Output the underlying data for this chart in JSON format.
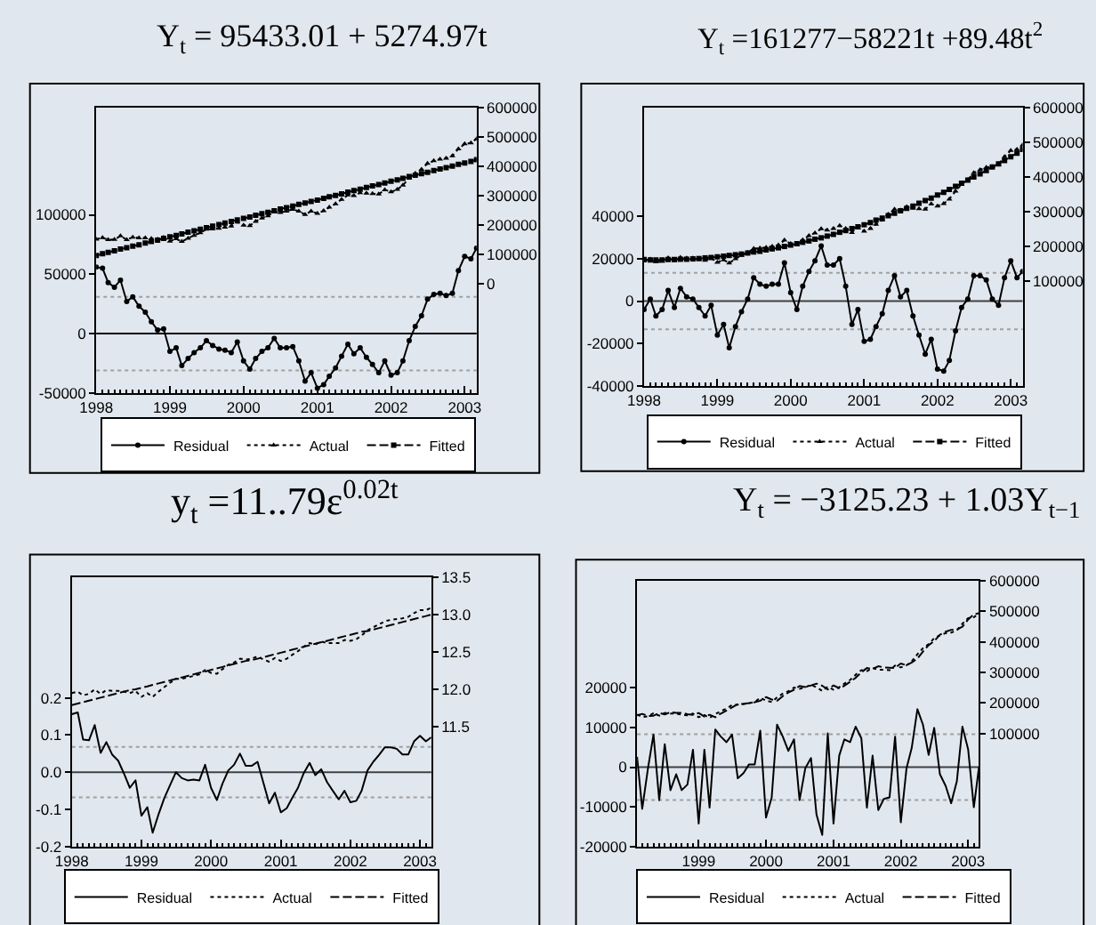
{
  "chart_data": [
    {
      "type": "line",
      "title": "Y$_{t}$ = 95433.01 + 5274.97t",
      "x": [
        "1998-01",
        "1998-02",
        "1998-03",
        "1998-04",
        "1998-05",
        "1998-06",
        "1998-07",
        "1998-08",
        "1998-09",
        "1998-10",
        "1998-11",
        "1998-12",
        "1999-01",
        "1999-02",
        "1999-03",
        "1999-04",
        "1999-05",
        "1999-06",
        "1999-07",
        "1999-08",
        "1999-09",
        "1999-10",
        "1999-11",
        "1999-12",
        "2000-01",
        "2000-02",
        "2000-03",
        "2000-04",
        "2000-05",
        "2000-06",
        "2000-07",
        "2000-08",
        "2000-09",
        "2000-10",
        "2000-11",
        "2000-12",
        "2001-01",
        "2001-02",
        "2001-03",
        "2001-04",
        "2001-05",
        "2001-06",
        "2001-07",
        "2001-08",
        "2001-09",
        "2001-10",
        "2001-11",
        "2001-12",
        "2002-01",
        "2002-02",
        "2002-03",
        "2002-04",
        "2002-05",
        "2002-06",
        "2002-07",
        "2002-08",
        "2002-09",
        "2002-10",
        "2002-11",
        "2002-12",
        "2003-01",
        "2003-02",
        "2003-03"
      ],
      "xlim": [
        "1998-01",
        "2003-03"
      ],
      "xticks": [
        "1998",
        "1999",
        "2000",
        "2001",
        "2002",
        "2003"
      ],
      "ylim": [
        -50000,
        190000
      ],
      "yticks": [
        -50000,
        0,
        50000,
        100000
      ],
      "y2lim": [
        -375000,
        600000
      ],
      "y2ticks": [
        0,
        100000,
        200000,
        300000,
        400000,
        500000,
        600000
      ],
      "series": [
        {
          "name": "Residual",
          "color": "#000000",
          "marker": "circle",
          "line_style": "solid",
          "values": [
            56000,
            55000,
            43000,
            39000,
            45000,
            27000,
            31000,
            23000,
            18000,
            10000,
            3000,
            4000,
            -15000,
            -12000,
            -27000,
            -21000,
            -16000,
            -12000,
            -6000,
            -10000,
            -13000,
            -14000,
            -16000,
            -7000,
            -23000,
            -30000,
            -21000,
            -15000,
            -12000,
            -4000,
            -12000,
            -12000,
            -11000,
            -23000,
            -40000,
            -33000,
            -46000,
            -43000,
            -36000,
            -29000,
            -19000,
            -9000,
            -17000,
            -12000,
            -20000,
            -26000,
            -33000,
            -23000,
            -35000,
            -33000,
            -23000,
            -6000,
            6000,
            15000,
            29000,
            33000,
            34000,
            32000,
            34000,
            53000,
            65000,
            63000,
            72000
          ]
        },
        {
          "name": "Actual",
          "color": "#000000",
          "marker": "triangle",
          "line_style": "dotted",
          "axis": "y2",
          "values": [
            151000,
            156000,
            149000,
            150000,
            162000,
            149000,
            158000,
            155000,
            155000,
            153000,
            151000,
            157000,
            144000,
            152000,
            143000,
            154000,
            164000,
            173000,
            185000,
            186000,
            188000,
            192000,
            196000,
            209000,
            199000,
            197000,
            212000,
            223000,
            231000,
            244000,
            242000,
            247000,
            253000,
            247000,
            235000,
            247000,
            239000,
            248000,
            260000,
            272000,
            287000,
            302000,
            300000,
            310000,
            308000,
            307000,
            305000,
            320000,
            313000,
            321000,
            336000,
            359000,
            376000,
            390000,
            410000,
            419000,
            425000,
            428000,
            436000,
            460000,
            477000,
            480000,
            494000
          ]
        },
        {
          "name": "Fitted",
          "color": "#000000",
          "marker": "square",
          "line_style": "dashed",
          "axis": "y2",
          "values": [
            95000,
            101000,
            106000,
            111000,
            117000,
            122000,
            127000,
            132000,
            138000,
            143000,
            148000,
            154000,
            159000,
            164000,
            169000,
            175000,
            180000,
            185000,
            190000,
            196000,
            201000,
            206000,
            212000,
            217000,
            222000,
            227000,
            233000,
            238000,
            243000,
            248000,
            254000,
            259000,
            264000,
            270000,
            275000,
            280000,
            285000,
            291000,
            296000,
            301000,
            306000,
            312000,
            317000,
            322000,
            328000,
            333000,
            338000,
            343000,
            349000,
            354000,
            359000,
            365000,
            370000,
            375000,
            380000,
            386000,
            391000,
            396000,
            401000,
            407000,
            412000,
            417000,
            423000
          ]
        }
      ],
      "ref_lines": [
        {
          "axis": "y",
          "value": 0,
          "color": "#000000",
          "line_style": "solid"
        },
        {
          "axis": "y",
          "value": 31000,
          "color": "#a0a0a0",
          "line_style": "dotted"
        },
        {
          "axis": "y",
          "value": -31000,
          "color": "#a0a0a0",
          "line_style": "dotted"
        }
      ],
      "legend": "bottom"
    },
    {
      "type": "line",
      "title": "Y$_{t}$ =161277−58221t +89.48t$^{2}$",
      "x": [
        "1998-01",
        "1998-02",
        "1998-03",
        "1998-04",
        "1998-05",
        "1998-06",
        "1998-07",
        "1998-08",
        "1998-09",
        "1998-10",
        "1998-11",
        "1998-12",
        "1999-01",
        "1999-02",
        "1999-03",
        "1999-04",
        "1999-05",
        "1999-06",
        "1999-07",
        "1999-08",
        "1999-09",
        "1999-10",
        "1999-11",
        "1999-12",
        "2000-01",
        "2000-02",
        "2000-03",
        "2000-04",
        "2000-05",
        "2000-06",
        "2000-07",
        "2000-08",
        "2000-09",
        "2000-10",
        "2000-11",
        "2000-12",
        "2001-01",
        "2001-02",
        "2001-03",
        "2001-04",
        "2001-05",
        "2001-06",
        "2001-07",
        "2001-08",
        "2001-09",
        "2001-10",
        "2001-11",
        "2001-12",
        "2002-01",
        "2002-02",
        "2002-03",
        "2002-04",
        "2002-05",
        "2002-06",
        "2002-07",
        "2002-08",
        "2002-09",
        "2002-10",
        "2002-11",
        "2002-12",
        "2003-01",
        "2003-02",
        "2003-03"
      ],
      "xlim": [
        "1998-01",
        "2003-03"
      ],
      "xticks": [
        "1998",
        "1999",
        "2000",
        "2001",
        "2002",
        "2003"
      ],
      "ylim": [
        -40000,
        91000
      ],
      "yticks": [
        -40000,
        -20000,
        0,
        20000,
        40000
      ],
      "y2lim": [
        -205000,
        600000
      ],
      "y2ticks": [
        100000,
        200000,
        300000,
        400000,
        500000,
        600000
      ],
      "series": [
        {
          "name": "Residual",
          "color": "#000000",
          "marker": "circle",
          "line_style": "solid",
          "values": [
            -4000,
            1000,
            -7000,
            -4000,
            5000,
            -3000,
            6000,
            2000,
            1000,
            -3000,
            -7000,
            -2000,
            -16000,
            -11000,
            -22000,
            -12000,
            -5000,
            1000,
            11000,
            8000,
            7000,
            8000,
            8000,
            18000,
            4000,
            -4000,
            7000,
            14000,
            19000,
            26000,
            17000,
            17000,
            20000,
            7000,
            -11000,
            -4000,
            -19000,
            -18000,
            -12000,
            -6000,
            5000,
            12000,
            2000,
            5000,
            -7000,
            -16000,
            -25000,
            -18000,
            -32000,
            -33000,
            -28000,
            -14000,
            -3000,
            1000,
            12000,
            12000,
            10000,
            1000,
            -2000,
            11000,
            19000,
            11000,
            14000
          ]
        },
        {
          "name": "Actual",
          "color": "#000000",
          "marker": "triangle",
          "line_style": "dotted",
          "axis": "y2",
          "values": [
            157000,
            162000,
            154000,
            156000,
            166000,
            158000,
            167000,
            165000,
            165000,
            161000,
            159000,
            165000,
            153000,
            160000,
            151000,
            163000,
            173000,
            181000,
            193000,
            194000,
            196000,
            199000,
            203000,
            217000,
            207000,
            203000,
            218000,
            230000,
            238000,
            250000,
            246000,
            251000,
            259000,
            251000,
            239000,
            253000,
            243000,
            251000,
            263000,
            275000,
            292000,
            307000,
            304000,
            314000,
            309000,
            308000,
            307000,
            322000,
            316000,
            323000,
            336000,
            359000,
            379000,
            392000,
            412000,
            421000,
            428000,
            430000,
            437000,
            459000,
            477000,
            480000,
            493000
          ]
        },
        {
          "name": "Fitted",
          "color": "#000000",
          "marker": "square",
          "line_style": "dashed",
          "axis": "y2",
          "values": [
            161000,
            160000,
            160000,
            160000,
            161000,
            161000,
            162000,
            162000,
            163000,
            164000,
            166000,
            167000,
            169000,
            171000,
            173000,
            175000,
            177000,
            180000,
            183000,
            185000,
            189000,
            192000,
            195000,
            199000,
            203000,
            207000,
            211000,
            215000,
            220000,
            224000,
            229000,
            234000,
            240000,
            245000,
            251000,
            256000,
            262000,
            268000,
            275000,
            281000,
            288000,
            295000,
            302000,
            309000,
            316000,
            324000,
            332000,
            339000,
            348000,
            356000,
            364000,
            373000,
            382000,
            391000,
            400000,
            409000,
            419000,
            429000,
            438000,
            448000,
            459000,
            469000,
            480000
          ]
        }
      ],
      "ref_lines": [
        {
          "axis": "y",
          "value": 0,
          "color": "#404040",
          "line_style": "solid"
        },
        {
          "axis": "y",
          "value": 13300,
          "color": "#a0a0a0",
          "line_style": "dotted"
        },
        {
          "axis": "y",
          "value": -13300,
          "color": "#a0a0a0",
          "line_style": "dotted"
        }
      ],
      "legend": "bottom"
    },
    {
      "type": "line",
      "title": "y$_{t}$ =11..79ε$^{0.02t}$",
      "x": [
        "1998-01",
        "1998-02",
        "1998-03",
        "1998-04",
        "1998-05",
        "1998-06",
        "1998-07",
        "1998-08",
        "1998-09",
        "1998-10",
        "1998-11",
        "1998-12",
        "1999-01",
        "1999-02",
        "1999-03",
        "1999-04",
        "1999-05",
        "1999-06",
        "1999-07",
        "1999-08",
        "1999-09",
        "1999-10",
        "1999-11",
        "1999-12",
        "2000-01",
        "2000-02",
        "2000-03",
        "2000-04",
        "2000-05",
        "2000-06",
        "2000-07",
        "2000-08",
        "2000-09",
        "2000-10",
        "2000-11",
        "2000-12",
        "2001-01",
        "2001-02",
        "2001-03",
        "2001-04",
        "2001-05",
        "2001-06",
        "2001-07",
        "2001-08",
        "2001-09",
        "2001-10",
        "2001-11",
        "2001-12",
        "2002-01",
        "2002-02",
        "2002-03",
        "2002-04",
        "2002-05",
        "2002-06",
        "2002-07",
        "2002-08",
        "2002-09",
        "2002-10",
        "2002-11",
        "2002-12",
        "2003-01",
        "2003-02",
        "2003-03"
      ],
      "xlim": [
        "1998-01",
        "2003-03"
      ],
      "xticks": [
        "1998",
        "1999",
        "2000",
        "2001",
        "2002",
        "2003"
      ],
      "ylim": [
        -0.2,
        0.525
      ],
      "yticks": [
        -0.2,
        -0.1,
        {
          "value": 0,
          "label": "0.0"
        },
        0.1,
        0.2
      ],
      "y2lim": [
        9.9,
        13.5
      ],
      "y2ticks": [
        11.5,
        {
          "value": 12,
          "label": "12.0"
        },
        12.5,
        {
          "value": 13,
          "label": "13.0"
        },
        13.5
      ],
      "series": [
        {
          "name": "Residual",
          "color": "#000000",
          "line_style": "solid",
          "values": [
            0.156,
            0.161,
            0.088,
            0.086,
            0.127,
            0.052,
            0.081,
            0.047,
            0.031,
            -0.003,
            -0.042,
            -0.022,
            -0.117,
            -0.094,
            -0.163,
            -0.113,
            -0.07,
            -0.034,
            0.0,
            -0.016,
            -0.022,
            -0.02,
            -0.022,
            0.02,
            -0.042,
            -0.075,
            -0.031,
            0.005,
            0.02,
            0.05,
            0.017,
            0.017,
            0.028,
            -0.027,
            -0.084,
            -0.055,
            -0.108,
            -0.097,
            -0.07,
            -0.042,
            -0.003,
            0.025,
            -0.008,
            0.008,
            -0.027,
            -0.05,
            -0.073,
            -0.05,
            -0.081,
            -0.077,
            -0.05,
            0.005,
            0.028,
            0.047,
            0.067,
            0.067,
            0.063,
            0.048,
            0.048,
            0.083,
            0.098,
            0.083,
            0.094
          ]
        },
        {
          "name": "Actual",
          "color": "#000000",
          "line_style": "dotted",
          "axis": "y2",
          "values": [
            11.95,
            11.97,
            11.92,
            11.94,
            12.0,
            11.94,
            11.99,
            11.98,
            11.98,
            11.97,
            11.95,
            11.98,
            11.9,
            11.95,
            11.9,
            11.97,
            12.03,
            12.09,
            12.14,
            12.14,
            12.16,
            12.18,
            12.2,
            12.26,
            12.22,
            12.21,
            12.27,
            12.33,
            12.36,
            12.41,
            12.4,
            12.41,
            12.44,
            12.4,
            12.37,
            12.42,
            12.38,
            12.41,
            12.46,
            12.51,
            12.57,
            12.62,
            12.6,
            12.64,
            12.62,
            12.62,
            12.62,
            12.66,
            12.65,
            12.67,
            12.72,
            12.79,
            12.83,
            12.87,
            12.91,
            12.93,
            12.94,
            12.95,
            12.97,
            13.02,
            13.06,
            13.06,
            13.09
          ]
        },
        {
          "name": "Fitted",
          "color": "#000000",
          "line_style": "dashed",
          "axis": "y2",
          "values": [
            11.79,
            11.81,
            11.83,
            11.85,
            11.87,
            11.89,
            11.91,
            11.93,
            11.95,
            11.97,
            11.99,
            12.0,
            12.02,
            12.04,
            12.06,
            12.08,
            12.1,
            12.12,
            12.14,
            12.16,
            12.18,
            12.2,
            12.22,
            12.24,
            12.26,
            12.28,
            12.3,
            12.32,
            12.34,
            12.36,
            12.38,
            12.39,
            12.41,
            12.43,
            12.45,
            12.47,
            12.49,
            12.51,
            12.53,
            12.55,
            12.57,
            12.59,
            12.61,
            12.63,
            12.65,
            12.67,
            12.69,
            12.71,
            12.73,
            12.75,
            12.77,
            12.78,
            12.8,
            12.82,
            12.84,
            12.86,
            12.88,
            12.9,
            12.92,
            12.94,
            12.96,
            12.98,
            13.0
          ]
        }
      ],
      "ref_lines": [
        {
          "axis": "y",
          "value": 0,
          "color": "#404040",
          "line_style": "solid"
        },
        {
          "axis": "y",
          "value": 0.068,
          "color": "#a0a0a0",
          "line_style": "dotted"
        },
        {
          "axis": "y",
          "value": -0.068,
          "color": "#a0a0a0",
          "line_style": "dotted"
        }
      ],
      "legend": "bottom"
    },
    {
      "type": "line",
      "title": "Y$_{t}$ = −3125.23 + 1.03Y$_{t−1}$",
      "x": [
        "1998-02",
        "1998-03",
        "1998-04",
        "1998-05",
        "1998-06",
        "1998-07",
        "1998-08",
        "1998-09",
        "1998-10",
        "1998-11",
        "1998-12",
        "1999-01",
        "1999-02",
        "1999-03",
        "1999-04",
        "1999-05",
        "1999-06",
        "1999-07",
        "1999-08",
        "1999-09",
        "1999-10",
        "1999-11",
        "1999-12",
        "2000-01",
        "2000-02",
        "2000-03",
        "2000-04",
        "2000-05",
        "2000-06",
        "2000-07",
        "2000-08",
        "2000-09",
        "2000-10",
        "2000-11",
        "2000-12",
        "2001-01",
        "2001-02",
        "2001-03",
        "2001-04",
        "2001-05",
        "2001-06",
        "2001-07",
        "2001-08",
        "2001-09",
        "2001-10",
        "2001-11",
        "2001-12",
        "2002-01",
        "2002-02",
        "2002-03",
        "2002-04",
        "2002-05",
        "2002-06",
        "2002-07",
        "2002-08",
        "2002-09",
        "2002-10",
        "2002-11",
        "2002-12",
        "2003-01",
        "2003-02",
        "2003-03"
      ],
      "xlim": [
        "1998-02",
        "2003-03"
      ],
      "xticks": [
        "1999",
        "2000",
        "2001",
        "2002",
        "2003"
      ],
      "ylim": [
        -20000,
        47000
      ],
      "yticks": [
        -20000,
        -10000,
        0,
        10000,
        20000
      ],
      "y2lim": [
        -270000,
        600000
      ],
      "y2ticks": [
        100000,
        200000,
        300000,
        400000,
        500000,
        600000
      ],
      "series": [
        {
          "name": "Residual",
          "color": "#000000",
          "line_style": "solid",
          "values": [
            2600,
            -10500,
            -300,
            8200,
            -8300,
            5800,
            -5800,
            -1800,
            -5800,
            -4400,
            4400,
            -14200,
            4400,
            -10200,
            9500,
            7700,
            6300,
            8200,
            -2800,
            -1500,
            700,
            700,
            9200,
            -12700,
            -7600,
            10700,
            7700,
            4100,
            7000,
            -8300,
            -300,
            2300,
            -12000,
            -17100,
            8500,
            -14200,
            2900,
            7000,
            6300,
            10200,
            7300,
            -10200,
            2900,
            -10800,
            -8000,
            -7600,
            7700,
            -13900,
            -300,
            4800,
            14600,
            10700,
            3100,
            9900,
            -1800,
            -4700,
            -9100,
            -3500,
            10200,
            4500,
            -10100,
            100
          ]
        },
        {
          "name": "Actual",
          "color": "#000000",
          "line_style": "dotted",
          "axis": "y2",
          "values": [
            162000,
            154000,
            156000,
            166000,
            158000,
            167000,
            165000,
            165000,
            161000,
            159000,
            165000,
            153000,
            160000,
            151000,
            163000,
            173000,
            181000,
            193000,
            194000,
            196000,
            199000,
            203000,
            217000,
            207000,
            203000,
            218000,
            230000,
            238000,
            250000,
            246000,
            251000,
            259000,
            251000,
            239000,
            253000,
            243000,
            251000,
            263000,
            275000,
            292000,
            307000,
            304000,
            314000,
            309000,
            308000,
            307000,
            322000,
            316000,
            323000,
            336000,
            359000,
            379000,
            392000,
            412000,
            421000,
            428000,
            430000,
            437000,
            459000,
            477000,
            480000,
            493000
          ]
        },
        {
          "name": "Fitted",
          "color": "#000000",
          "line_style": "dashed",
          "axis": "y2",
          "values": [
            159000,
            164000,
            157000,
            158000,
            167000,
            162000,
            170000,
            167000,
            167000,
            163000,
            161000,
            167000,
            155000,
            161000,
            153000,
            165000,
            175000,
            185000,
            196000,
            197000,
            199000,
            202000,
            207000,
            219000,
            211000,
            207000,
            222000,
            234000,
            243000,
            255000,
            252000,
            257000,
            263000,
            256000,
            244000,
            257000,
            248000,
            256000,
            269000,
            282000,
            300000,
            314000,
            311000,
            320000,
            316000,
            315000,
            314000,
            329000,
            323000,
            332000,
            345000,
            368000,
            389000,
            402000,
            423000,
            433000,
            439000,
            440000,
            449000,
            473000,
            490000,
            493000
          ]
        }
      ],
      "ref_lines": [
        {
          "axis": "y",
          "value": 0,
          "color": "#404040",
          "line_style": "solid"
        },
        {
          "axis": "y",
          "value": 8300,
          "color": "#a0a0a0",
          "line_style": "dotted"
        },
        {
          "axis": "y",
          "value": -8300,
          "color": "#a0a0a0",
          "line_style": "dotted"
        }
      ],
      "legend": "bottom"
    }
  ]
}
